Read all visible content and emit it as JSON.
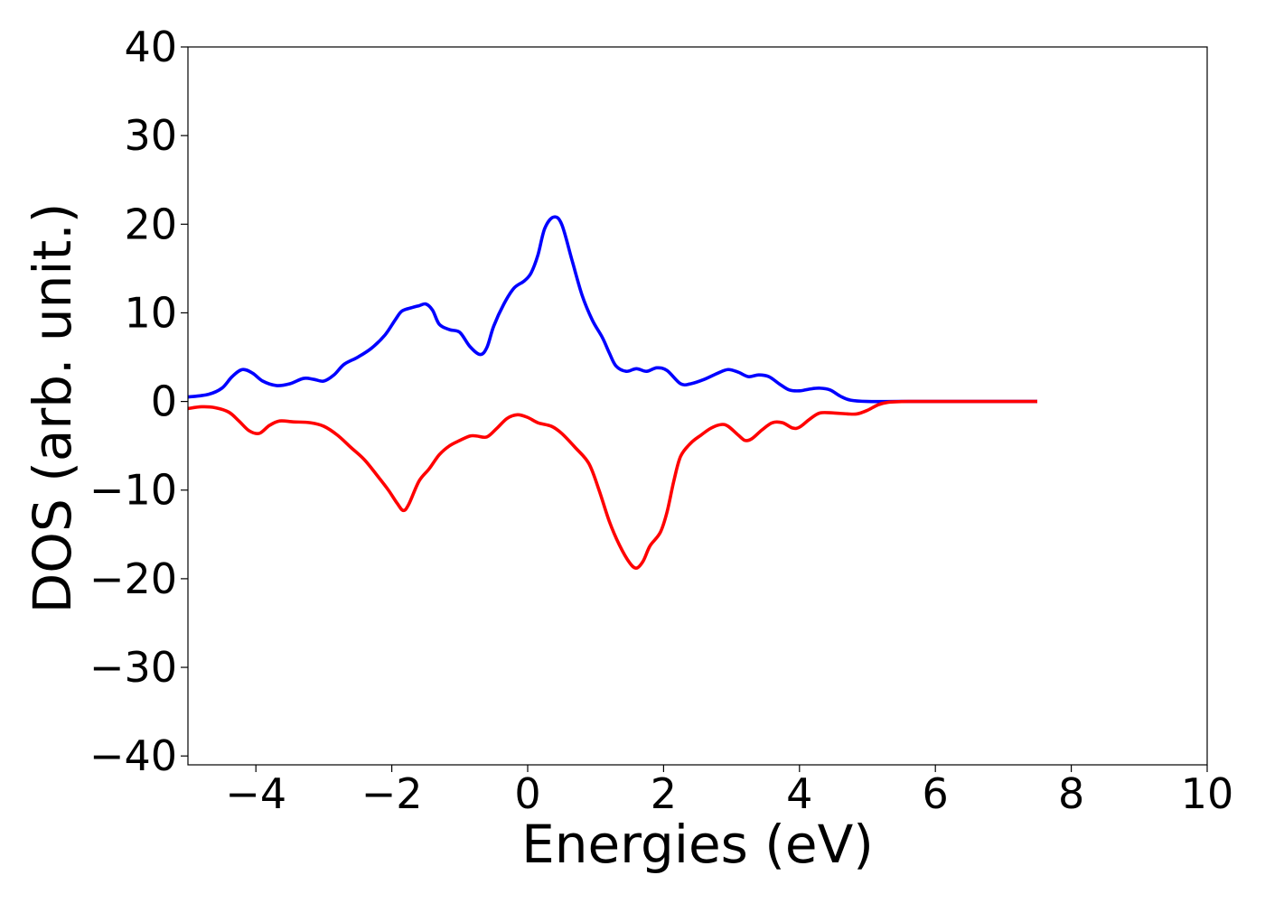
{
  "chart_data": {
    "type": "line",
    "title": "",
    "xlabel": "Energies (eV)",
    "ylabel": "DOS (arb. unit.)",
    "xlim": [
      -5,
      10
    ],
    "ylim": [
      -41,
      40
    ],
    "xticks": [
      -4,
      -2,
      0,
      2,
      4,
      6,
      8,
      10
    ],
    "xtick_labels": [
      "−4",
      "−2",
      "0",
      "2",
      "4",
      "6",
      "8",
      "10"
    ],
    "yticks": [
      40,
      30,
      20,
      10,
      0,
      -10,
      -20,
      -30,
      -40
    ],
    "ytick_labels": [
      "40",
      "30",
      "20",
      "10",
      "0",
      "−10",
      "−20",
      "−30",
      "−40"
    ],
    "grid": false,
    "legend": "none",
    "series": [
      {
        "color": "#0000ff",
        "points": [
          [
            -5.0,
            0.5
          ],
          [
            -4.7,
            0.8
          ],
          [
            -4.5,
            1.5
          ],
          [
            -4.35,
            2.8
          ],
          [
            -4.2,
            3.6
          ],
          [
            -4.05,
            3.2
          ],
          [
            -3.9,
            2.3
          ],
          [
            -3.7,
            1.8
          ],
          [
            -3.5,
            2.0
          ],
          [
            -3.3,
            2.6
          ],
          [
            -3.15,
            2.5
          ],
          [
            -3.0,
            2.3
          ],
          [
            -2.85,
            3.0
          ],
          [
            -2.7,
            4.2
          ],
          [
            -2.5,
            5.0
          ],
          [
            -2.3,
            6.0
          ],
          [
            -2.1,
            7.5
          ],
          [
            -1.95,
            9.2
          ],
          [
            -1.85,
            10.2
          ],
          [
            -1.7,
            10.6
          ],
          [
            -1.6,
            10.8
          ],
          [
            -1.5,
            11.0
          ],
          [
            -1.4,
            10.3
          ],
          [
            -1.3,
            8.7
          ],
          [
            -1.15,
            8.1
          ],
          [
            -1.0,
            7.8
          ],
          [
            -0.85,
            6.2
          ],
          [
            -0.7,
            5.3
          ],
          [
            -0.6,
            6.1
          ],
          [
            -0.5,
            8.5
          ],
          [
            -0.35,
            11.0
          ],
          [
            -0.2,
            12.8
          ],
          [
            -0.05,
            13.6
          ],
          [
            0.05,
            14.5
          ],
          [
            0.15,
            16.5
          ],
          [
            0.25,
            19.5
          ],
          [
            0.38,
            20.8
          ],
          [
            0.5,
            20.0
          ],
          [
            0.65,
            16.0
          ],
          [
            0.8,
            12.0
          ],
          [
            0.95,
            9.2
          ],
          [
            1.1,
            7.2
          ],
          [
            1.2,
            5.5
          ],
          [
            1.3,
            4.0
          ],
          [
            1.45,
            3.4
          ],
          [
            1.6,
            3.7
          ],
          [
            1.75,
            3.4
          ],
          [
            1.9,
            3.8
          ],
          [
            2.05,
            3.5
          ],
          [
            2.25,
            2.0
          ],
          [
            2.4,
            2.0
          ],
          [
            2.6,
            2.5
          ],
          [
            2.8,
            3.2
          ],
          [
            2.95,
            3.6
          ],
          [
            3.1,
            3.3
          ],
          [
            3.25,
            2.8
          ],
          [
            3.4,
            3.0
          ],
          [
            3.55,
            2.8
          ],
          [
            3.7,
            2.0
          ],
          [
            3.85,
            1.3
          ],
          [
            4.0,
            1.2
          ],
          [
            4.15,
            1.4
          ],
          [
            4.3,
            1.5
          ],
          [
            4.45,
            1.3
          ],
          [
            4.6,
            0.6
          ],
          [
            4.75,
            0.15
          ],
          [
            5.0,
            0.0
          ],
          [
            5.5,
            0.0
          ],
          [
            6.5,
            0.0
          ],
          [
            7.5,
            0.0
          ]
        ]
      },
      {
        "color": "#ff0000",
        "points": [
          [
            -5.0,
            -0.8
          ],
          [
            -4.8,
            -0.6
          ],
          [
            -4.6,
            -0.7
          ],
          [
            -4.4,
            -1.2
          ],
          [
            -4.25,
            -2.2
          ],
          [
            -4.1,
            -3.3
          ],
          [
            -3.95,
            -3.6
          ],
          [
            -3.8,
            -2.7
          ],
          [
            -3.65,
            -2.2
          ],
          [
            -3.45,
            -2.3
          ],
          [
            -3.2,
            -2.4
          ],
          [
            -3.0,
            -2.8
          ],
          [
            -2.8,
            -3.8
          ],
          [
            -2.6,
            -5.2
          ],
          [
            -2.4,
            -6.6
          ],
          [
            -2.2,
            -8.5
          ],
          [
            -2.05,
            -10.0
          ],
          [
            -1.92,
            -11.5
          ],
          [
            -1.83,
            -12.3
          ],
          [
            -1.75,
            -11.6
          ],
          [
            -1.6,
            -9.0
          ],
          [
            -1.45,
            -7.6
          ],
          [
            -1.3,
            -6.0
          ],
          [
            -1.15,
            -5.0
          ],
          [
            -1.0,
            -4.4
          ],
          [
            -0.85,
            -3.9
          ],
          [
            -0.75,
            -3.9
          ],
          [
            -0.6,
            -4.0
          ],
          [
            -0.45,
            -3.0
          ],
          [
            -0.3,
            -1.9
          ],
          [
            -0.15,
            -1.5
          ],
          [
            0.0,
            -1.8
          ],
          [
            0.15,
            -2.4
          ],
          [
            0.35,
            -2.8
          ],
          [
            0.5,
            -3.6
          ],
          [
            0.7,
            -5.2
          ],
          [
            0.9,
            -7.0
          ],
          [
            1.05,
            -10.0
          ],
          [
            1.2,
            -13.5
          ],
          [
            1.35,
            -16.2
          ],
          [
            1.5,
            -18.2
          ],
          [
            1.6,
            -18.8
          ],
          [
            1.7,
            -18.0
          ],
          [
            1.8,
            -16.3
          ],
          [
            1.95,
            -14.8
          ],
          [
            2.05,
            -12.5
          ],
          [
            2.15,
            -9.0
          ],
          [
            2.25,
            -6.2
          ],
          [
            2.4,
            -4.7
          ],
          [
            2.55,
            -3.8
          ],
          [
            2.7,
            -3.0
          ],
          [
            2.85,
            -2.6
          ],
          [
            2.95,
            -2.8
          ],
          [
            3.1,
            -3.8
          ],
          [
            3.2,
            -4.4
          ],
          [
            3.3,
            -4.2
          ],
          [
            3.45,
            -3.2
          ],
          [
            3.6,
            -2.4
          ],
          [
            3.75,
            -2.4
          ],
          [
            3.9,
            -3.0
          ],
          [
            4.0,
            -2.9
          ],
          [
            4.15,
            -2.0
          ],
          [
            4.3,
            -1.3
          ],
          [
            4.5,
            -1.3
          ],
          [
            4.7,
            -1.4
          ],
          [
            4.85,
            -1.4
          ],
          [
            5.0,
            -1.0
          ],
          [
            5.15,
            -0.4
          ],
          [
            5.3,
            -0.1
          ],
          [
            5.6,
            0.0
          ],
          [
            6.5,
            0.0
          ],
          [
            7.5,
            0.0
          ]
        ]
      }
    ]
  }
}
